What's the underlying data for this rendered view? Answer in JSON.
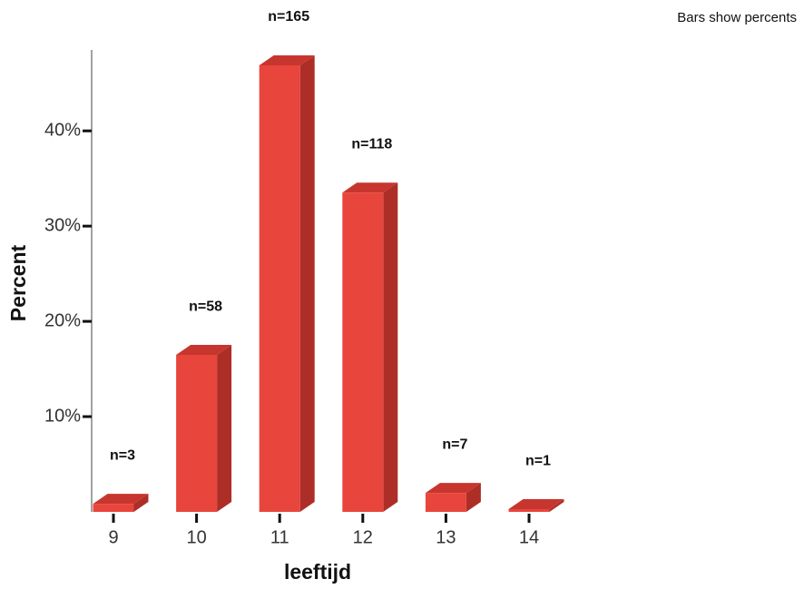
{
  "chart_data": {
    "type": "bar3d",
    "title": "Bars show percents",
    "x_label": "leeftijd",
    "y_label": "Percent",
    "categories": [
      "9",
      "10",
      "11",
      "12",
      "13",
      "14"
    ],
    "values": [
      0.85,
      16.48,
      46.88,
      33.52,
      1.99,
      0.28
    ],
    "count_labels": [
      "n=3",
      "n=58",
      "n=165",
      "n=118",
      "n=7",
      "n=1"
    ],
    "color": "#e8453c",
    "ylim": [
      0,
      48.5
    ],
    "yticks": [
      {
        "value": 10,
        "label": "10%"
      },
      {
        "value": 20,
        "label": "20%"
      },
      {
        "value": 30,
        "label": "30%"
      },
      {
        "value": 40,
        "label": "40%"
      }
    ]
  }
}
